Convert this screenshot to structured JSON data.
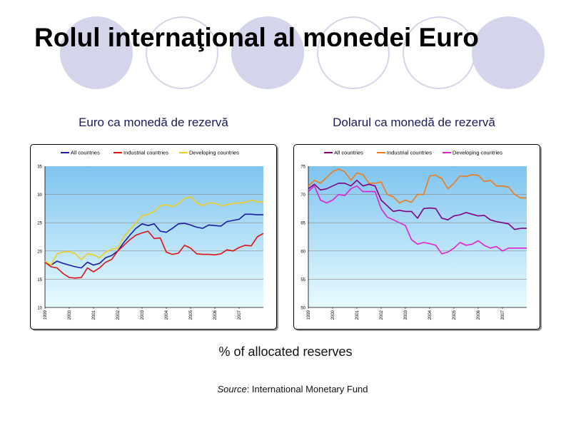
{
  "slide": {
    "title": "Rolul internaţional al monedei Euro",
    "caption": "% of allocated reserves",
    "source_label": "Source",
    "source_text": ": International Monetary Fund"
  },
  "colors": {
    "background_circles": "#d4d4ea",
    "plot_top": "#7fc4f0",
    "plot_bottom": "#e8fbff"
  },
  "chart_data": [
    {
      "type": "line",
      "title": "Euro ca monedă de rezervă",
      "ylim": [
        10,
        35
      ],
      "yticks": [
        "10",
        "15",
        "20",
        "25",
        "30",
        "35"
      ],
      "xlim": [
        1999,
        2008
      ],
      "xticks": [
        "1999",
        "2000",
        "2001",
        "2002",
        "2003",
        "2004",
        "2005",
        "2006",
        "2007"
      ],
      "legend_position": "top",
      "series": [
        {
          "name": "All countries",
          "color": "#1a1aa6",
          "x": [
            1999.0,
            1999.25,
            1999.5,
            1999.75,
            2000.0,
            2000.25,
            2000.5,
            2000.75,
            2001.0,
            2001.25,
            2001.5,
            2001.75,
            2002.0,
            2002.25,
            2002.5,
            2002.75,
            2003.0,
            2003.25,
            2003.5,
            2003.75,
            2004.0,
            2004.25,
            2004.5,
            2004.75,
            2005.0,
            2005.25,
            2005.5,
            2005.75,
            2006.0,
            2006.25,
            2006.5,
            2006.75,
            2007.0,
            2007.25,
            2007.5,
            2007.75,
            2008.0
          ],
          "values": [
            18.0,
            17.5,
            18.2,
            17.8,
            17.5,
            17.2,
            17.0,
            18.0,
            17.5,
            17.8,
            18.8,
            19.2,
            20.0,
            21.5,
            22.8,
            24.0,
            24.8,
            24.5,
            24.8,
            23.5,
            23.3,
            24.0,
            24.8,
            24.9,
            24.6,
            24.2,
            24.0,
            24.6,
            24.5,
            24.4,
            25.2,
            25.4,
            25.6,
            26.5,
            26.5,
            26.4,
            26.4
          ]
        },
        {
          "name": "Industrial countries",
          "color": "#e01010",
          "x": [
            1999.0,
            1999.25,
            1999.5,
            1999.75,
            2000.0,
            2000.25,
            2000.5,
            2000.75,
            2001.0,
            2001.25,
            2001.5,
            2001.75,
            2002.0,
            2002.25,
            2002.5,
            2002.75,
            2003.0,
            2003.25,
            2003.5,
            2003.75,
            2004.0,
            2004.25,
            2004.5,
            2004.75,
            2005.0,
            2005.25,
            2005.5,
            2005.75,
            2006.0,
            2006.25,
            2006.5,
            2006.75,
            2007.0,
            2007.25,
            2007.5,
            2007.75,
            2008.0
          ],
          "values": [
            18.0,
            17.2,
            17.0,
            16.0,
            15.3,
            15.2,
            15.3,
            17.0,
            16.3,
            17.0,
            18.0,
            18.5,
            20.0,
            21.0,
            22.0,
            22.8,
            23.2,
            23.5,
            22.2,
            22.3,
            19.8,
            19.4,
            19.6,
            21.0,
            20.5,
            19.5,
            19.4,
            19.4,
            19.3,
            19.5,
            20.2,
            20.0,
            20.6,
            21.0,
            20.9,
            22.5,
            23.1
          ]
        },
        {
          "name": "Developing countries",
          "color": "#f2cc1a",
          "x": [
            1999.0,
            1999.25,
            1999.5,
            1999.75,
            2000.0,
            2000.25,
            2000.5,
            2000.75,
            2001.0,
            2001.25,
            2001.5,
            2001.75,
            2002.0,
            2002.25,
            2002.5,
            2002.75,
            2003.0,
            2003.25,
            2003.5,
            2003.75,
            2004.0,
            2004.25,
            2004.5,
            2004.75,
            2005.0,
            2005.25,
            2005.5,
            2005.75,
            2006.0,
            2006.25,
            2006.5,
            2006.75,
            2007.0,
            2007.25,
            2007.5,
            2007.75,
            2008.0
          ],
          "values": [
            18.2,
            17.5,
            19.5,
            19.8,
            19.9,
            19.5,
            18.5,
            19.5,
            19.3,
            18.8,
            19.8,
            20.3,
            20.5,
            22.5,
            23.8,
            25.0,
            26.2,
            26.5,
            27.0,
            28.0,
            28.2,
            27.8,
            28.4,
            29.3,
            29.6,
            28.5,
            28.0,
            28.5,
            28.5,
            28.0,
            28.2,
            28.4,
            28.5,
            28.6,
            29.0,
            28.7,
            28.7
          ]
        }
      ]
    },
    {
      "type": "line",
      "title": "Dolarul ca monedă de rezervă",
      "ylim": [
        50,
        75
      ],
      "yticks": [
        "50",
        "55",
        "60",
        "65",
        "70",
        "75"
      ],
      "xlim": [
        1999,
        2008
      ],
      "xticks": [
        "1999",
        "2000",
        "2001",
        "2002",
        "2003",
        "2004",
        "2005",
        "2006",
        "2007"
      ],
      "legend_position": "top",
      "series": [
        {
          "name": "All countries",
          "color": "#800080",
          "x": [
            1999.0,
            1999.25,
            1999.5,
            1999.75,
            2000.0,
            2000.25,
            2000.5,
            2000.75,
            2001.0,
            2001.25,
            2001.5,
            2001.75,
            2002.0,
            2002.25,
            2002.5,
            2002.75,
            2003.0,
            2003.25,
            2003.5,
            2003.75,
            2004.0,
            2004.25,
            2004.5,
            2004.75,
            2005.0,
            2005.25,
            2005.5,
            2005.75,
            2006.0,
            2006.25,
            2006.5,
            2006.75,
            2007.0,
            2007.25,
            2007.5,
            2007.75,
            2008.0
          ],
          "values": [
            71.0,
            71.8,
            70.8,
            71.0,
            71.5,
            72.0,
            72.0,
            71.5,
            72.5,
            71.5,
            71.8,
            71.5,
            69.0,
            68.0,
            67.0,
            67.2,
            67.0,
            67.0,
            65.8,
            67.5,
            67.6,
            67.5,
            65.8,
            65.5,
            66.2,
            66.4,
            66.8,
            66.5,
            66.2,
            66.3,
            65.5,
            65.2,
            65.0,
            64.8,
            63.8,
            64.0,
            64.0
          ]
        },
        {
          "name": "Industrial countries",
          "color": "#f07a18",
          "x": [
            1999.0,
            1999.25,
            1999.5,
            1999.75,
            2000.0,
            2000.25,
            2000.5,
            2000.75,
            2001.0,
            2001.25,
            2001.5,
            2001.75,
            2002.0,
            2002.25,
            2002.5,
            2002.75,
            2003.0,
            2003.25,
            2003.5,
            2003.75,
            2004.0,
            2004.25,
            2004.5,
            2004.75,
            2005.0,
            2005.25,
            2005.5,
            2005.75,
            2006.0,
            2006.25,
            2006.5,
            2006.75,
            2007.0,
            2007.25,
            2007.5,
            2007.75,
            2008.0
          ],
          "values": [
            71.5,
            72.5,
            72.0,
            73.0,
            74.0,
            74.5,
            74.0,
            72.5,
            73.8,
            73.5,
            72.0,
            72.0,
            72.2,
            70.0,
            69.6,
            68.5,
            69.0,
            68.6,
            70.0,
            70.0,
            73.3,
            73.4,
            72.8,
            71.0,
            72.0,
            73.3,
            73.2,
            73.5,
            73.4,
            72.3,
            72.5,
            71.5,
            71.5,
            71.3,
            70.0,
            69.4,
            69.4
          ]
        },
        {
          "name": "Developing countries",
          "color": "#e020d0",
          "x": [
            1999.0,
            1999.25,
            1999.5,
            1999.75,
            2000.0,
            2000.25,
            2000.5,
            2000.75,
            2001.0,
            2001.25,
            2001.5,
            2001.75,
            2002.0,
            2002.25,
            2002.5,
            2002.75,
            2003.0,
            2003.25,
            2003.5,
            2003.75,
            2004.0,
            2004.25,
            2004.5,
            2004.75,
            2005.0,
            2005.25,
            2005.5,
            2005.75,
            2006.0,
            2006.25,
            2006.5,
            2006.75,
            2007.0,
            2007.25,
            2007.5,
            2007.75,
            2008.0
          ],
          "values": [
            70.5,
            71.5,
            69.0,
            68.5,
            69.0,
            70.0,
            69.8,
            71.0,
            71.5,
            70.5,
            70.5,
            70.5,
            67.5,
            66.0,
            65.5,
            65.0,
            64.5,
            62.0,
            61.2,
            61.5,
            61.3,
            61.0,
            59.5,
            59.8,
            60.5,
            61.5,
            61.0,
            61.2,
            61.8,
            61.0,
            60.5,
            60.8,
            60.0,
            60.5,
            60.5,
            60.5,
            60.5
          ]
        }
      ]
    }
  ]
}
